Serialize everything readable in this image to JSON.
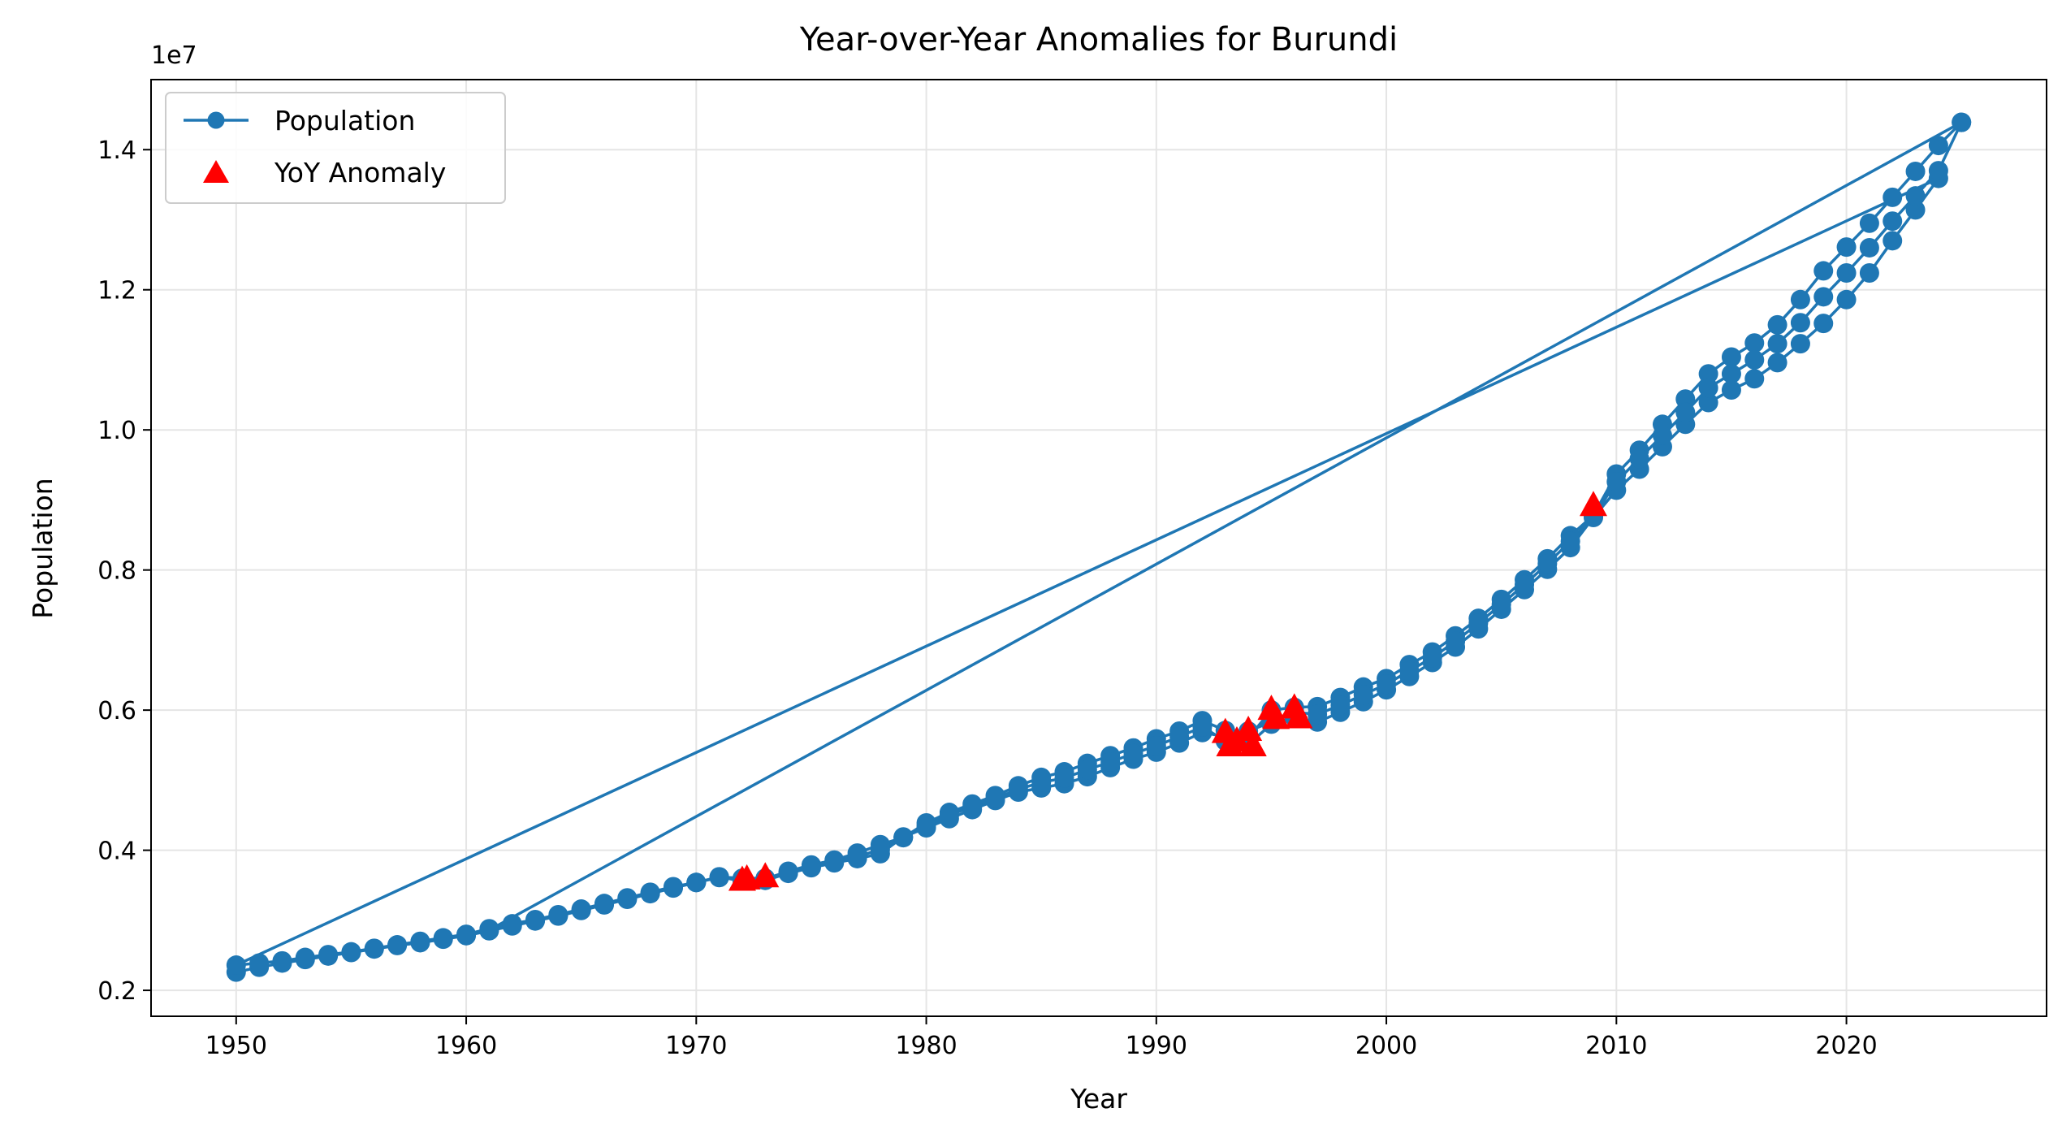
{
  "chart_data": {
    "type": "line",
    "title": "Year-over-Year Anomalies for Burundi",
    "xlabel": "Year",
    "ylabel": "Population",
    "y_offset_label": "1e7",
    "y_multiplier": 10000000,
    "xlim": [
      1946.3,
      2028.7
    ],
    "ylim": [
      1630000,
      15000000
    ],
    "x_ticks": [
      1950,
      1960,
      1970,
      1980,
      1990,
      2000,
      2010,
      2020
    ],
    "x_tick_labels": [
      "1950",
      "1960",
      "1970",
      "1980",
      "1990",
      "2000",
      "2010",
      "2020"
    ],
    "y_ticks": [
      2000000,
      4000000,
      6000000,
      8000000,
      10000000,
      12000000,
      14000000
    ],
    "y_tick_labels": [
      "0.2",
      "0.4",
      "0.6",
      "0.8",
      "1.0",
      "1.2",
      "1.4"
    ],
    "grid": true,
    "legend_position": "top-left",
    "colors": {
      "line": "#1f77b4",
      "anomaly": "#ff0000",
      "grid": "#e5e5e5"
    },
    "series": [
      {
        "name": "Population",
        "style": "line-with-markers",
        "x": [
          1950,
          1951,
          1952,
          1953,
          1954,
          1955,
          1956,
          1957,
          1958,
          1959,
          1960,
          1961,
          1962,
          1963,
          1964,
          1965,
          1966,
          1967,
          1968,
          1969,
          1970,
          1971,
          1972,
          1973,
          1974,
          1975,
          1976,
          1977,
          1978,
          1979,
          1980,
          1981,
          1982,
          1983,
          1984,
          1985,
          1986,
          1987,
          1988,
          1989,
          1990,
          1991,
          1992,
          1993,
          1994,
          1995,
          1996,
          1997,
          1998,
          1999,
          2000,
          2001,
          2002,
          2003,
          2004,
          2005,
          2006,
          2007,
          2008,
          2009,
          2010,
          2011,
          2012,
          2013,
          2014,
          2015,
          2016,
          2017,
          2018,
          2019,
          2020,
          2021,
          2022,
          2023,
          2024,
          1950,
          1951,
          1952,
          1953,
          1954,
          1955,
          1956,
          1957,
          1958,
          1959,
          1960,
          1961,
          1962,
          1963,
          1964,
          1965,
          1966,
          1967,
          1968,
          1969,
          1970,
          1971,
          1972,
          1973,
          1974,
          1975,
          1976,
          1977,
          1978,
          1979,
          1980,
          1981,
          1982,
          1983,
          1984,
          1985,
          1986,
          1987,
          1988,
          1989,
          1990,
          1991,
          1992,
          1993,
          1994,
          1995,
          1996,
          1997,
          1998,
          1999,
          2000,
          2001,
          2002,
          2003,
          2004,
          2005,
          2006,
          2007,
          2008,
          2009,
          2010,
          2011,
          2012,
          2013,
          2014,
          2015,
          2016,
          2017,
          2018,
          2019,
          2020,
          2021,
          2022,
          2023,
          2024,
          2025,
          1961,
          1962,
          1963,
          1964,
          1965,
          1966,
          1967,
          1968,
          1969,
          1970,
          1971,
          1972,
          1973,
          1974,
          1975,
          1976,
          1977,
          1978,
          1979,
          1980,
          1981,
          1982,
          1983,
          1984,
          1985,
          1986,
          1987,
          1988,
          1989,
          1990,
          1991,
          1992,
          1993,
          1994,
          1995,
          1996,
          1997,
          1998,
          1999,
          2000,
          2001,
          2002,
          2003,
          2004,
          2005,
          2006,
          2007,
          2008,
          2009,
          2010,
          2011,
          2012,
          2013,
          2014,
          2015,
          2016,
          2017,
          2018,
          2019,
          2020,
          2021,
          2022,
          2023,
          2024,
          2025
        ],
        "y": [
          2260000,
          2330000,
          2390000,
          2440000,
          2490000,
          2540000,
          2590000,
          2640000,
          2680000,
          2730000,
          2780000,
          2850000,
          2920000,
          2990000,
          3060000,
          3140000,
          3220000,
          3300000,
          3380000,
          3460000,
          3540000,
          3610000,
          3580000,
          3570000,
          3670000,
          3750000,
          3820000,
          3880000,
          3950000,
          4190000,
          4320000,
          4450000,
          4580000,
          4710000,
          4830000,
          4890000,
          4950000,
          5050000,
          5180000,
          5300000,
          5400000,
          5530000,
          5680000,
          5620000,
          5510000,
          5800000,
          5900000,
          5830000,
          5970000,
          6120000,
          6290000,
          6480000,
          6680000,
          6900000,
          7160000,
          7440000,
          7720000,
          8010000,
          8320000,
          8750000,
          9140000,
          9440000,
          9760000,
          10080000,
          10390000,
          10570000,
          10730000,
          10960000,
          11230000,
          11520000,
          11860000,
          12240000,
          12700000,
          13140000,
          13590000,
          2360000,
          2390000,
          2420000,
          2470000,
          2510000,
          2550000,
          2600000,
          2650000,
          2700000,
          2750000,
          2800000,
          2880000,
          2950000,
          3010000,
          3080000,
          3160000,
          3240000,
          3320000,
          3400000,
          3480000,
          3540000,
          3620000,
          3560000,
          3590000,
          3700000,
          3790000,
          3860000,
          3960000,
          4080000,
          4180000,
          4390000,
          4540000,
          4660000,
          4780000,
          4920000,
          5040000,
          5120000,
          5240000,
          5350000,
          5460000,
          5590000,
          5700000,
          5850000,
          5710000,
          5600000,
          6000000,
          6040000,
          6050000,
          6180000,
          6330000,
          6450000,
          6650000,
          6830000,
          7060000,
          7310000,
          7580000,
          7860000,
          8160000,
          8490000,
          8780000,
          9370000,
          9710000,
          10080000,
          10440000,
          10800000,
          11040000,
          11240000,
          11500000,
          11860000,
          12270000,
          12610000,
          12950000,
          13320000,
          13690000,
          14060000,
          14390000,
          2860000,
          2930000,
          3000000,
          3070000,
          3150000,
          3230000,
          3310000,
          3390000,
          3470000,
          3540000,
          3620000,
          3600000,
          3600000,
          3680000,
          3770000,
          3840000,
          3910000,
          4010000,
          4180000,
          4350000,
          4500000,
          4620000,
          4740000,
          4870000,
          4970000,
          5030000,
          5150000,
          5260000,
          5380000,
          5490000,
          5620000,
          5760000,
          5560000,
          5700000,
          5830000,
          5970000,
          5940000,
          6070000,
          6220000,
          6370000,
          6560000,
          6750000,
          6980000,
          7240000,
          7510000,
          7790000,
          8090000,
          8410000,
          8760000,
          9260000,
          9590000,
          9920000,
          10250000,
          10600000,
          10800000,
          11000000,
          11230000,
          11530000,
          11900000,
          12240000,
          12600000,
          12980000,
          13340000,
          13700000,
          14390000
        ]
      },
      {
        "name": "YoY Anomaly",
        "style": "markers",
        "x": [
          1972,
          1972.2,
          1973,
          1993,
          1993.2,
          1993.5,
          1994,
          1994.2,
          1995,
          1995.2,
          1996,
          1996.2,
          2009
        ],
        "y": [
          3560000,
          3580000,
          3610000,
          5670000,
          5480000,
          5550000,
          5700000,
          5480000,
          6000000,
          5870000,
          6020000,
          5880000,
          8910000
        ]
      }
    ]
  }
}
